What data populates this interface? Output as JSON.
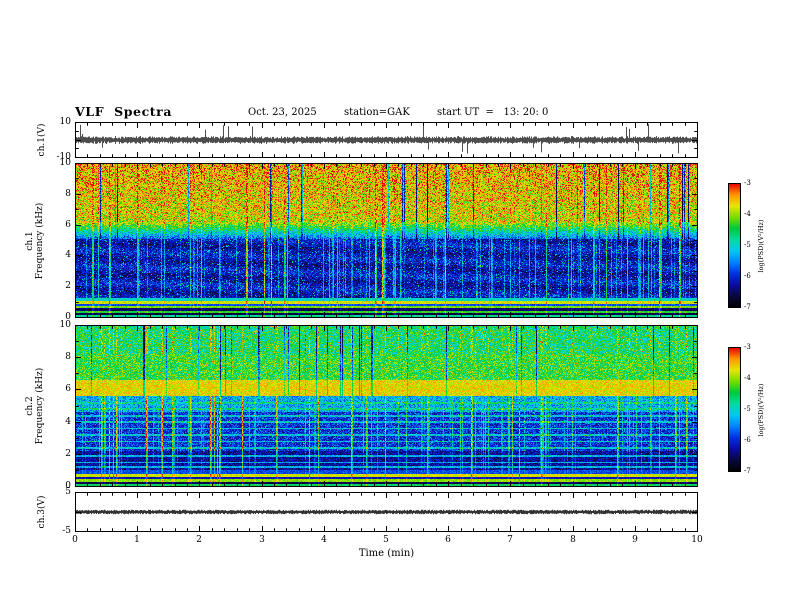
{
  "header": {
    "title": "VLF  Spectra",
    "date": "Oct. 23, 2025",
    "station": "station=GAK",
    "start_ut": "start UT  =   13: 20: 0"
  },
  "xaxis": {
    "label": "Time  (min)",
    "ticks": [
      0,
      1,
      2,
      3,
      4,
      5,
      6,
      7,
      8,
      9,
      10
    ],
    "range": [
      0,
      10
    ]
  },
  "colorbar": {
    "label": "log(PSD)(V²/Hz)",
    "ticks": [
      -3,
      -4,
      -5,
      -6,
      -7
    ],
    "range": [
      -7,
      -3
    ],
    "colormap": [
      "#000000",
      "#08083c",
      "#0a0aa0",
      "#0032dc",
      "#0082ff",
      "#00c8f0",
      "#00dca0",
      "#00c83c",
      "#78dc00",
      "#e6e600",
      "#ff9600",
      "#e10000"
    ]
  },
  "chart_data": [
    {
      "type": "line",
      "name": "ch1_waveform",
      "ylabel": "ch.1(V)",
      "ylim": [
        -10,
        10
      ],
      "ytick_labels": [
        10,
        -10
      ],
      "xlim": [
        0,
        10
      ],
      "description": "dense broadband noise trace near 0 V with impulsive sferic spikes reaching about ±10 V"
    },
    {
      "type": "heatmap",
      "name": "ch1_spectrogram",
      "ylabel_lines": [
        "ch.1",
        "Frequency (kHz)"
      ],
      "ylim": [
        0,
        10
      ],
      "yticks": [
        0,
        2,
        4,
        6,
        8,
        10
      ],
      "xlim": [
        0,
        10
      ],
      "description": "strong yellow-red PSD above ~6 kHz, dark blue 1.5-5 kHz with many vertical sferic streaks, bright banded structure below ~1.2 kHz"
    },
    {
      "type": "heatmap",
      "name": "ch2_spectrogram",
      "ylabel_lines": [
        "ch.2",
        "Frequency (kHz)"
      ],
      "ylim": [
        0,
        10
      ],
      "yticks": [
        0,
        2,
        4,
        6,
        8,
        10
      ],
      "xlim": [
        0,
        10
      ],
      "description": "green-yellow PSD above ~6.5 kHz, orange band near 6 kHz, blue 1-5 kHz with cyan horizontal lines and vertical sferic streaks, bright bands below ~1 kHz"
    },
    {
      "type": "line",
      "name": "ch3_waveform",
      "ylabel": "ch.3(V)",
      "ylim": [
        -5,
        5
      ],
      "ytick_labels": [
        5,
        -5
      ],
      "xlim": [
        0,
        10
      ],
      "description": "flat dark trace at 0 V"
    }
  ]
}
